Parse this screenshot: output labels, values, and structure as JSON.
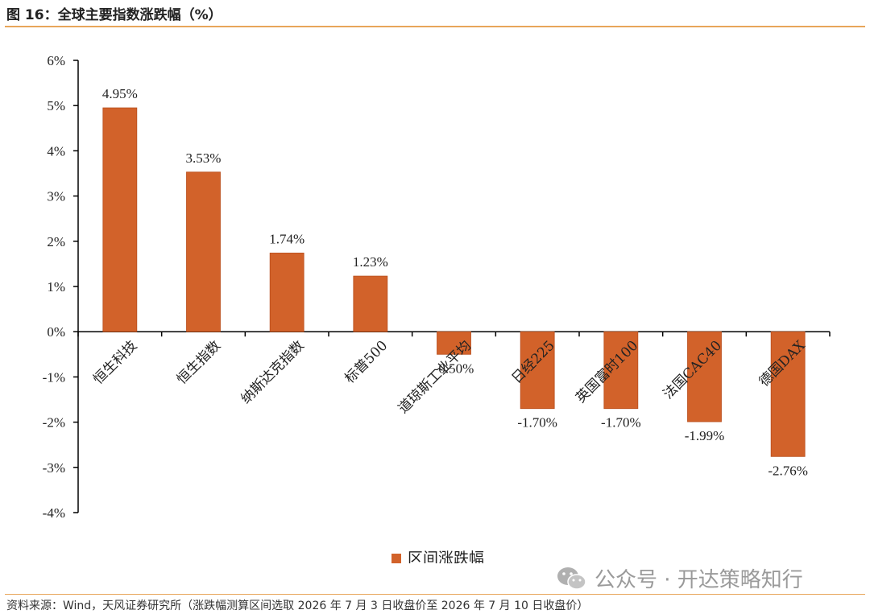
{
  "figure": {
    "title": "图 16：全球主要指数涨跌幅（%）",
    "source": "资料来源：Wind，天风证券研究所（涨跌幅测算区间选取 2026 年 7 月 3 日收盘价至 2026 年 7 月 10 日收盘价）"
  },
  "watermark": {
    "text": "公众号 · 开达策略知行",
    "icon": "wechat-icon",
    "color": "#9a9a9a"
  },
  "chart_data": {
    "type": "bar",
    "categories": [
      "恒生科技",
      "恒生指数",
      "纳斯达克指数",
      "标普500",
      "道琼斯工业平均",
      "日经225",
      "英国富时100",
      "法国CAC40",
      "德国DAX"
    ],
    "series": [
      {
        "name": "区间涨跌幅",
        "values": [
          4.95,
          3.53,
          1.74,
          1.23,
          -0.5,
          -1.7,
          -1.7,
          -1.99,
          -2.76
        ],
        "labels": [
          "4.95%",
          "3.53%",
          "1.74%",
          "1.23%",
          "-0.50%",
          "-1.70%",
          "-1.70%",
          "-1.99%",
          "-2.76%"
        ],
        "color": "#D2622A"
      }
    ],
    "yticks": [
      6,
      5,
      4,
      3,
      2,
      1,
      0,
      -1,
      -2,
      -3,
      -4
    ],
    "ytick_labels": [
      "6%",
      "5%",
      "4%",
      "3%",
      "2%",
      "1%",
      "0%",
      "-1%",
      "-2%",
      "-3%",
      "-4%"
    ],
    "ylim": [
      -4,
      6
    ],
    "grid": false,
    "legend": "bottom-center",
    "xlabel": "",
    "ylabel": ""
  }
}
